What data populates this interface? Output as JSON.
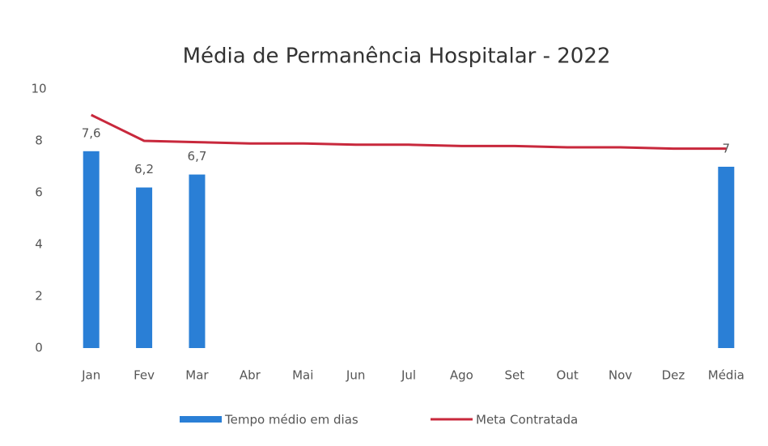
{
  "chart_data": {
    "type": "bar_line",
    "title": "Média de Permanência Hospitalar - 2022",
    "categories": [
      "Jan",
      "Fev",
      "Mar",
      "Abr",
      "Mai",
      "Jun",
      "Jul",
      "Ago",
      "Set",
      "Out",
      "Nov",
      "Dez",
      "Média"
    ],
    "series": [
      {
        "name": "Tempo médio em dias",
        "type": "bar",
        "color": "#2a7fd6",
        "values": [
          7.6,
          6.2,
          6.7,
          null,
          null,
          null,
          null,
          null,
          null,
          null,
          null,
          null,
          7
        ],
        "value_labels": [
          "7,6",
          "6,2",
          "6,7",
          null,
          null,
          null,
          null,
          null,
          null,
          null,
          null,
          null,
          "7"
        ]
      },
      {
        "name": "Meta Contratada",
        "type": "line",
        "color": "#c8283c",
        "values": [
          9,
          8,
          7.95,
          7.9,
          7.9,
          7.85,
          7.85,
          7.8,
          7.8,
          7.75,
          7.75,
          7.7,
          7.7
        ]
      }
    ],
    "ylim": [
      0,
      10
    ],
    "yticks": [
      0,
      2,
      4,
      6,
      8,
      10
    ],
    "legend": "bottom"
  }
}
